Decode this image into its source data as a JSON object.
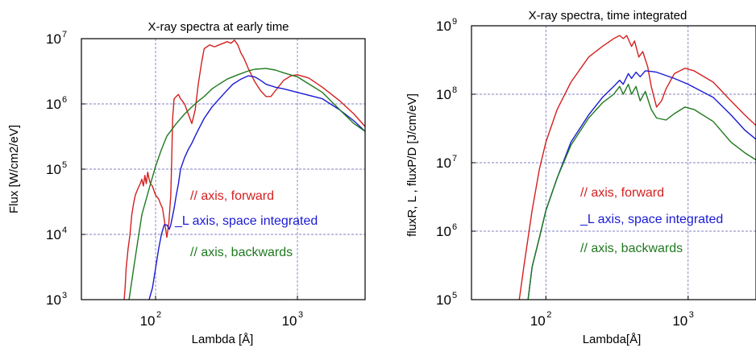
{
  "chart_data": [
    {
      "type": "line",
      "title": "X-ray spectra at early time",
      "xlabel": "Lambda [Å]",
      "ylabel": "Flux [W/cm2/eV]",
      "xscale": "log",
      "yscale": "log",
      "xlim": [
        30,
        3000
      ],
      "ylim": [
        1000,
        10000000
      ],
      "xticks": [
        {
          "base": "10",
          "exp": "2",
          "value": 100
        },
        {
          "base": "10",
          "exp": "3",
          "value": 1000
        }
      ],
      "yticks": [
        {
          "base": "10",
          "exp": "3",
          "value": 1000
        },
        {
          "base": "10",
          "exp": "4",
          "value": 10000
        },
        {
          "base": "10",
          "exp": "5",
          "value": 100000
        },
        {
          "base": "10",
          "exp": "6",
          "value": 1000000
        },
        {
          "base": "10",
          "exp": "7",
          "value": 10000000
        }
      ],
      "grid": true,
      "legend": [
        {
          "label": "// axis, forward",
          "color": "#d42020"
        },
        {
          "label": "_L axis, space integrated",
          "color": "#1a1ad4"
        },
        {
          "label": "// axis, backwards",
          "color": "#1f7a1f"
        }
      ],
      "series": [
        {
          "color": "#d42020",
          "points": [
            [
              60,
              800
            ],
            [
              61,
              1500
            ],
            [
              62,
              3000
            ],
            [
              64,
              6000
            ],
            [
              66,
              10000
            ],
            [
              68,
              20000
            ],
            [
              70,
              30000
            ],
            [
              72,
              40000
            ],
            [
              75,
              50000
            ],
            [
              78,
              60000
            ],
            [
              80,
              70000
            ],
            [
              82,
              55000
            ],
            [
              84,
              80000
            ],
            [
              86,
              60000
            ],
            [
              88,
              90000
            ],
            [
              90,
              70000
            ],
            [
              92,
              60000
            ],
            [
              95,
              55000
            ],
            [
              98,
              45000
            ],
            [
              100,
              40000
            ],
            [
              105,
              35000
            ],
            [
              108,
              30000
            ],
            [
              112,
              25000
            ],
            [
              116,
              15000
            ],
            [
              120,
              9000
            ],
            [
              124,
              15000
            ],
            [
              128,
              40000
            ],
            [
              130,
              150000
            ],
            [
              132,
              600000
            ],
            [
              135,
              1200000
            ],
            [
              140,
              1300000
            ],
            [
              145,
              1400000
            ],
            [
              150,
              1200000
            ],
            [
              160,
              1000000
            ],
            [
              170,
              700000
            ],
            [
              180,
              500000
            ],
            [
              190,
              800000
            ],
            [
              200,
              2000000
            ],
            [
              210,
              4000000
            ],
            [
              220,
              7000000
            ],
            [
              240,
              8000000
            ],
            [
              260,
              7500000
            ],
            [
              280,
              8000000
            ],
            [
              300,
              8500000
            ],
            [
              320,
              9000000
            ],
            [
              340,
              8500000
            ],
            [
              360,
              9500000
            ],
            [
              380,
              8000000
            ],
            [
              400,
              6000000
            ],
            [
              420,
              5000000
            ],
            [
              450,
              3500000
            ],
            [
              500,
              2200000
            ],
            [
              550,
              1600000
            ],
            [
              600,
              1300000
            ],
            [
              650,
              1300000
            ],
            [
              700,
              1600000
            ],
            [
              800,
              2300000
            ],
            [
              900,
              2700000
            ],
            [
              1000,
              2800000
            ],
            [
              1200,
              2500000
            ],
            [
              1500,
              1800000
            ],
            [
              2000,
              1100000
            ],
            [
              2500,
              700000
            ],
            [
              3000,
              450000
            ]
          ]
        },
        {
          "color": "#1a1ad4",
          "points": [
            [
              90,
              800
            ],
            [
              95,
              1500
            ],
            [
              100,
              3000
            ],
            [
              105,
              6000
            ],
            [
              110,
              10000
            ],
            [
              115,
              14000
            ],
            [
              120,
              14000
            ],
            [
              125,
              12000
            ],
            [
              128,
              14000
            ],
            [
              135,
              25000
            ],
            [
              140,
              40000
            ],
            [
              145,
              60000
            ],
            [
              150,
              100000
            ],
            [
              160,
              150000
            ],
            [
              170,
              200000
            ],
            [
              180,
              250000
            ],
            [
              190,
              320000
            ],
            [
              200,
              400000
            ],
            [
              220,
              600000
            ],
            [
              250,
              900000
            ],
            [
              300,
              1400000
            ],
            [
              350,
              2000000
            ],
            [
              400,
              2400000
            ],
            [
              450,
              2700000
            ],
            [
              500,
              2600000
            ],
            [
              550,
              2300000
            ],
            [
              600,
              2000000
            ],
            [
              700,
              1800000
            ],
            [
              800,
              1700000
            ],
            [
              1000,
              1500000
            ],
            [
              1500,
              1200000
            ],
            [
              2000,
              800000
            ],
            [
              2500,
              550000
            ],
            [
              3000,
              380000
            ]
          ]
        },
        {
          "color": "#1f7a1f",
          "points": [
            [
              65,
              1000
            ],
            [
              70,
              3000
            ],
            [
              75,
              8000
            ],
            [
              80,
              20000
            ],
            [
              90,
              50000
            ],
            [
              100,
              110000
            ],
            [
              110,
              200000
            ],
            [
              120,
              320000
            ],
            [
              140,
              500000
            ],
            [
              160,
              700000
            ],
            [
              180,
              900000
            ],
            [
              200,
              1100000
            ],
            [
              220,
              1300000
            ],
            [
              250,
              1700000
            ],
            [
              280,
              2000000
            ],
            [
              320,
              2400000
            ],
            [
              380,
              2800000
            ],
            [
              450,
              3200000
            ],
            [
              500,
              3400000
            ],
            [
              600,
              3500000
            ],
            [
              700,
              3300000
            ],
            [
              800,
              3000000
            ],
            [
              1000,
              2600000
            ],
            [
              1500,
              1500000
            ],
            [
              2000,
              800000
            ],
            [
              2500,
              500000
            ],
            [
              3000,
              380000
            ]
          ]
        }
      ]
    },
    {
      "type": "line",
      "title": "X-ray spectra, time integrated",
      "xlabel": "Lambda[Å]",
      "ylabel": "fluxR, L , fluxP/D [J/cm/eV]",
      "xscale": "log",
      "yscale": "log",
      "xlim": [
        30,
        3000
      ],
      "ylim": [
        100000,
        1000000000
      ],
      "xticks": [
        {
          "base": "10",
          "exp": "2",
          "value": 100
        },
        {
          "base": "10",
          "exp": "3",
          "value": 1000
        }
      ],
      "yticks": [
        {
          "base": "10",
          "exp": "5",
          "value": 100000
        },
        {
          "base": "10",
          "exp": "6",
          "value": 1000000
        },
        {
          "base": "10",
          "exp": "7",
          "value": 10000000
        },
        {
          "base": "10",
          "exp": "8",
          "value": 100000000
        },
        {
          "base": "10",
          "exp": "9",
          "value": 1000000000
        }
      ],
      "grid": true,
      "legend": [
        {
          "label": "// axis, forward",
          "color": "#d42020"
        },
        {
          "label": "_L axis, space integrated",
          "color": "#1a1ad4"
        },
        {
          "label": "// axis, backwards",
          "color": "#1f7a1f"
        }
      ],
      "series": [
        {
          "color": "#d42020",
          "points": [
            [
              65,
              100000
            ],
            [
              70,
              300000
            ],
            [
              80,
              2000000
            ],
            [
              90,
              8000000
            ],
            [
              100,
              20000000
            ],
            [
              120,
              60000000
            ],
            [
              150,
              150000000
            ],
            [
              200,
              350000000
            ],
            [
              250,
              500000000
            ],
            [
              300,
              650000000
            ],
            [
              330,
              720000000
            ],
            [
              350,
              650000000
            ],
            [
              370,
              720000000
            ],
            [
              400,
              500000000
            ],
            [
              420,
              600000000
            ],
            [
              450,
              350000000
            ],
            [
              480,
              420000000
            ],
            [
              520,
              250000000
            ],
            [
              550,
              130000000
            ],
            [
              600,
              65000000
            ],
            [
              650,
              80000000
            ],
            [
              700,
              120000000
            ],
            [
              800,
              200000000
            ],
            [
              950,
              240000000
            ],
            [
              1100,
              220000000
            ],
            [
              1500,
              150000000
            ],
            [
              2000,
              80000000
            ],
            [
              2500,
              50000000
            ],
            [
              3000,
              35000000
            ]
          ]
        },
        {
          "color": "#1a1ad4",
          "points": [
            [
              75,
              100000
            ],
            [
              80,
              300000
            ],
            [
              90,
              800000
            ],
            [
              100,
              2000000
            ],
            [
              120,
              6000000
            ],
            [
              150,
              20000000
            ],
            [
              200,
              50000000
            ],
            [
              250,
              90000000
            ],
            [
              300,
              130000000
            ],
            [
              330,
              160000000
            ],
            [
              350,
              140000000
            ],
            [
              380,
              200000000
            ],
            [
              400,
              170000000
            ],
            [
              430,
              210000000
            ],
            [
              460,
              180000000
            ],
            [
              500,
              220000000
            ],
            [
              550,
              215000000
            ],
            [
              600,
              210000000
            ],
            [
              800,
              170000000
            ],
            [
              1000,
              140000000
            ],
            [
              1500,
              90000000
            ],
            [
              2000,
              50000000
            ],
            [
              2500,
              30000000
            ],
            [
              3000,
              22000000
            ]
          ]
        },
        {
          "color": "#1f7a1f",
          "points": [
            [
              75,
              100000
            ],
            [
              80,
              300000
            ],
            [
              90,
              800000
            ],
            [
              100,
              2000000
            ],
            [
              120,
              6000000
            ],
            [
              150,
              18000000
            ],
            [
              200,
              45000000
            ],
            [
              250,
              75000000
            ],
            [
              300,
              100000000
            ],
            [
              330,
              130000000
            ],
            [
              350,
              100000000
            ],
            [
              380,
              140000000
            ],
            [
              400,
              100000000
            ],
            [
              430,
              130000000
            ],
            [
              460,
              80000000
            ],
            [
              500,
              110000000
            ],
            [
              550,
              60000000
            ],
            [
              600,
              45000000
            ],
            [
              700,
              42000000
            ],
            [
              800,
              52000000
            ],
            [
              950,
              65000000
            ],
            [
              1100,
              60000000
            ],
            [
              1500,
              40000000
            ],
            [
              2000,
              20000000
            ],
            [
              2500,
              14000000
            ],
            [
              3000,
              11000000
            ]
          ]
        }
      ]
    }
  ]
}
